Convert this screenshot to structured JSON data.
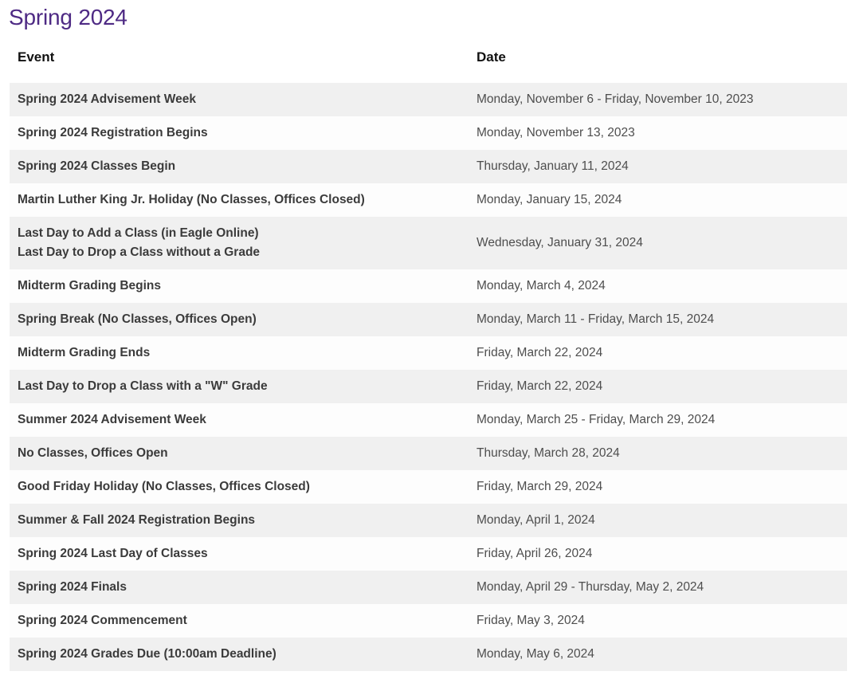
{
  "page": {
    "title": "Spring 2024",
    "accent_color": "#4e2a84",
    "stripe_color": "#f0f0f0"
  },
  "table": {
    "columns": {
      "event": "Event",
      "date": "Date"
    },
    "rows": [
      {
        "event_lines": [
          "Spring 2024 Advisement Week"
        ],
        "date": "Monday, November 6 - Friday, November 10, 2023"
      },
      {
        "event_lines": [
          "Spring 2024 Registration Begins"
        ],
        "date": "Monday, November 13, 2023"
      },
      {
        "event_lines": [
          "Spring 2024 Classes Begin"
        ],
        "date": "Thursday, January 11, 2024"
      },
      {
        "event_lines": [
          "Martin Luther King Jr. Holiday (No Classes, Offices Closed)"
        ],
        "date": "Monday, January 15, 2024"
      },
      {
        "event_lines": [
          "Last Day to Add a Class (in Eagle Online)",
          "Last Day to Drop a Class without a Grade"
        ],
        "date": "Wednesday, January 31, 2024"
      },
      {
        "event_lines": [
          "Midterm Grading Begins"
        ],
        "date": "Monday, March 4, 2024"
      },
      {
        "event_lines": [
          "Spring Break (No Classes, Offices Open)"
        ],
        "date": "Monday, March 11 - Friday, March 15, 2024"
      },
      {
        "event_lines": [
          "Midterm Grading Ends"
        ],
        "date": "Friday, March 22, 2024"
      },
      {
        "event_lines": [
          "Last Day to Drop a Class with a \"W\" Grade"
        ],
        "date": "Friday, March 22, 2024"
      },
      {
        "event_lines": [
          "Summer 2024 Advisement Week"
        ],
        "date": "Monday, March 25 - Friday, March 29, 2024"
      },
      {
        "event_lines": [
          "No Classes, Offices Open"
        ],
        "date": "Thursday, March 28, 2024"
      },
      {
        "event_lines": [
          "Good Friday Holiday (No Classes, Offices Closed)"
        ],
        "date": "Friday, March 29, 2024"
      },
      {
        "event_lines": [
          "Summer & Fall 2024 Registration Begins"
        ],
        "date": "Monday, April 1, 2024"
      },
      {
        "event_lines": [
          "Spring 2024 Last Day of Classes"
        ],
        "date": "Friday, April 26, 2024"
      },
      {
        "event_lines": [
          "Spring 2024 Finals"
        ],
        "date": "Monday, April 29 - Thursday, May 2, 2024"
      },
      {
        "event_lines": [
          "Spring 2024 Commencement"
        ],
        "date": "Friday, May 3, 2024"
      },
      {
        "event_lines": [
          "Spring 2024 Grades Due (10:00am Deadline)"
        ],
        "date": "Monday, May 6, 2024"
      }
    ]
  }
}
